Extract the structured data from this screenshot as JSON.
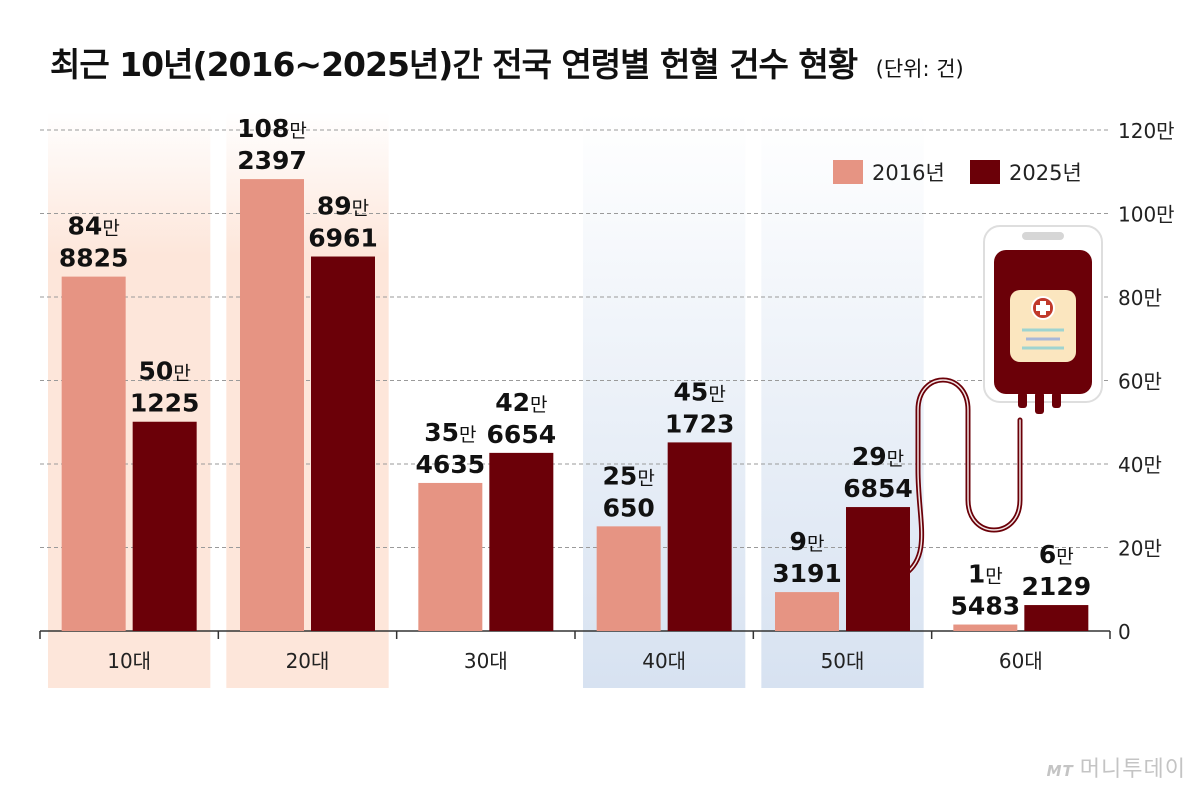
{
  "title": "최근 10년(2016~2025년)간 전국 연령별 헌혈 건수 현황",
  "unit_note": "(단위: 건)",
  "chart_data": {
    "type": "bar",
    "categories": [
      "10대",
      "20대",
      "30대",
      "40대",
      "50대",
      "60대"
    ],
    "series": [
      {
        "name": "2016년",
        "color": "#e69483",
        "values": [
          848825,
          1082397,
          354635,
          250650,
          93191,
          15483
        ],
        "labels": [
          [
            "84만",
            "8825"
          ],
          [
            "108만",
            "2397"
          ],
          [
            "35만",
            "4635"
          ],
          [
            "25만",
            "650"
          ],
          [
            "9만",
            "3191"
          ],
          [
            "1만",
            "5483"
          ]
        ]
      },
      {
        "name": "2025년",
        "color": "#6b0008",
        "values": [
          501225,
          896961,
          426654,
          451723,
          296854,
          62129
        ],
        "labels": [
          [
            "50만",
            "1225"
          ],
          [
            "89만",
            "6961"
          ],
          [
            "42만",
            "6654"
          ],
          [
            "45만",
            "1723"
          ],
          [
            "29만",
            "6854"
          ],
          [
            "6만",
            "2129"
          ]
        ]
      }
    ],
    "ylim": [
      0,
      1200000
    ],
    "yticks": [
      "0",
      "20만",
      "40만",
      "60만",
      "80만",
      "100만",
      "120만"
    ],
    "ytick_values": [
      0,
      200000,
      400000,
      600000,
      800000,
      1000000,
      1200000
    ],
    "legend_position": "top-right",
    "grid": true,
    "highlight_colors": {
      "10대": "#fde6da",
      "20대": "#fde6da",
      "40대": "#d7e2f1",
      "50대": "#d7e2f1"
    },
    "icon": "blood-bag-icon"
  },
  "watermark": {
    "mark": "MT",
    "text": "머니투데이"
  }
}
